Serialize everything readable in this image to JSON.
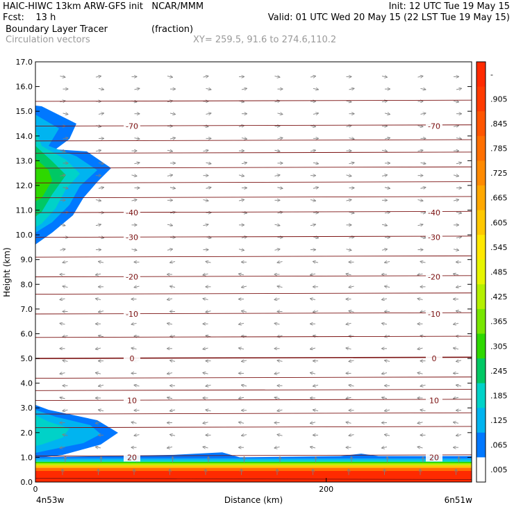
{
  "header": {
    "line1_left": "HAIC-HIWC 13km ARW-GFS init   NCAR/MMM",
    "line1_right": "Init: 12 UTC Tue 19 May 15",
    "line2_left": "Fcst:    13 h",
    "line2_right": "Valid: 01 UTC Wed 20 May 15 (22 LST Tue 19 May 15)",
    "line3_left": "Boundary Layer Tracer",
    "line3_mid": "(fraction)",
    "line4_left": "Circulation vectors",
    "line4_mid": "XY= 259.5, 91.6 to 274.6,110.2"
  },
  "chart_data": {
    "type": "heatmap",
    "ylabel": "Height (km)",
    "xlabel": "Distance (km)",
    "ylim": [
      0,
      17
    ],
    "xlim": [
      0,
      300
    ],
    "y_ticks": [
      "0.0",
      "1.0",
      "2.0",
      "3.0",
      "4.0",
      "5.0",
      "6.0",
      "7.0",
      "8.0",
      "9.0",
      "10.0",
      "11.0",
      "12.0",
      "13.0",
      "14.0",
      "15.0",
      "16.0",
      "17.0"
    ],
    "x_ticks": [
      {
        "value": 0,
        "label": "0"
      },
      {
        "value": 200,
        "label": "200"
      }
    ],
    "x_endpoints": {
      "left": "4n53w",
      "right": "6n51w"
    },
    "colorbar_labels": [
      "-",
      ".905",
      ".845",
      ".785",
      ".725",
      ".665",
      ".605",
      ".545",
      ".485",
      ".425",
      ".365",
      ".305",
      ".245",
      ".185",
      ".125",
      ".065",
      ".005"
    ],
    "colorbar_colors": [
      "#ff2a00",
      "#ff3b00",
      "#ff5500",
      "#ff6f00",
      "#ff8a00",
      "#ffa800",
      "#ffc800",
      "#ffe800",
      "#e6f500",
      "#b4f000",
      "#78e600",
      "#2ed800",
      "#00c864",
      "#00d2c8",
      "#00b4f0",
      "#0078ff",
      "#ffffff"
    ],
    "temperature_contours": [
      {
        "label": "-70",
        "y": 14.4
      },
      {
        "label": "-40",
        "y": 10.9
      },
      {
        "label": "-30",
        "y": 9.9
      },
      {
        "label": "-20",
        "y": 8.3
      },
      {
        "label": "-10",
        "y": 6.8
      },
      {
        "label": "0",
        "y": 5.0
      },
      {
        "label": "10",
        "y": 3.3
      },
      {
        "label": "20",
        "y": 1.0
      }
    ]
  }
}
